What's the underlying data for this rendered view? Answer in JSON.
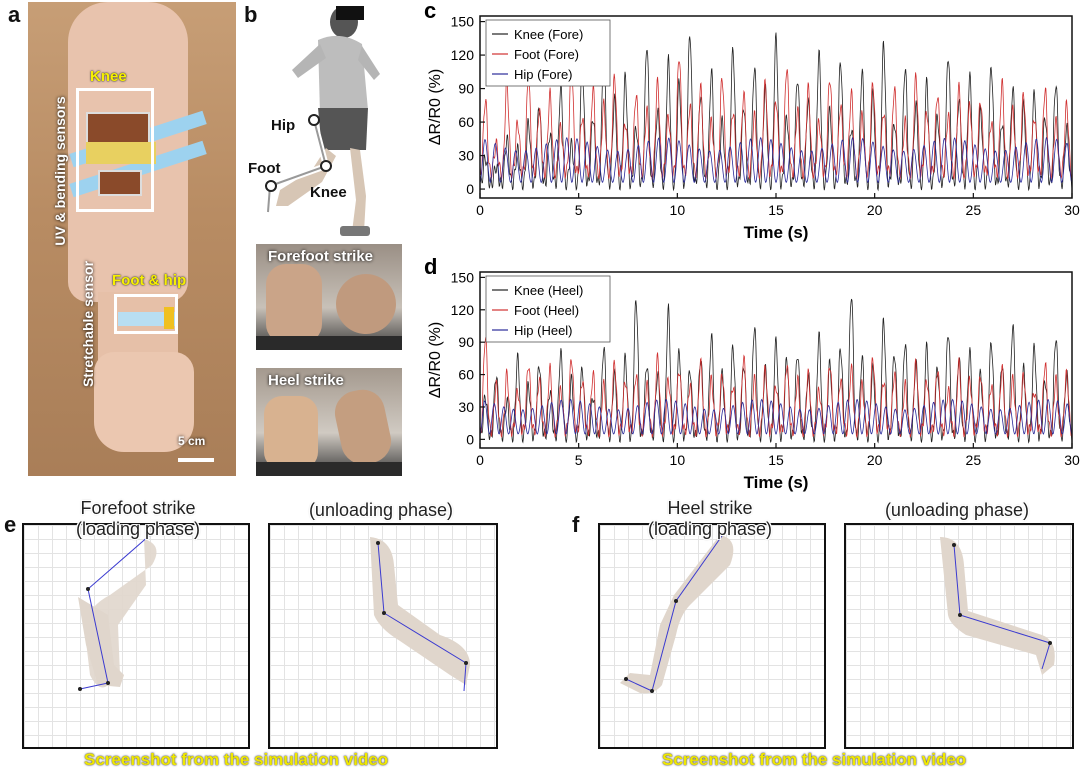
{
  "panels": {
    "a": {
      "letter": "a",
      "labels": {
        "knee": "Knee",
        "uv_bending": "UV & bending sensors",
        "stretchable": "Stretchable sensor",
        "foot_hip": "Foot & hip",
        "scale": "5 cm"
      }
    },
    "b": {
      "letter": "b",
      "labels": {
        "hip": "Hip",
        "foot": "Foot",
        "knee": "Knee",
        "forefoot_strike": "Forefoot strike",
        "heel_strike": "Heel strike"
      }
    },
    "e": {
      "letter": "e",
      "title_left": [
        "Forefoot strike",
        "(loading phase)"
      ],
      "title_right": "(unloading phase)",
      "caption": "Screenshot from the simulation video"
    },
    "f": {
      "letter": "f",
      "title_left": [
        "Heel strike",
        "(loading phase)"
      ],
      "title_right": "(unloading phase)",
      "caption": "Screenshot from the simulation video"
    }
  },
  "chart_data": [
    {
      "panel": "c",
      "type": "line",
      "xlabel": "Time (s)",
      "ylabel": "ΔR/R0 (%)",
      "xlim": [
        0,
        30
      ],
      "ylim": [
        -8,
        155
      ],
      "xticks": [
        0,
        5,
        10,
        15,
        20,
        25,
        30
      ],
      "yticks": [
        0,
        30,
        60,
        90,
        120,
        150
      ],
      "legend_position": "top-left",
      "series": [
        {
          "name": "Knee (Fore)",
          "color": "#222222",
          "style": "peaks",
          "baseline": 5,
          "peaks": [
            28,
            20,
            45,
            35,
            60,
            75,
            50,
            90,
            40,
            110,
            65,
            120,
            80,
            100,
            55,
            130,
            70,
            115,
            95,
            140,
            85,
            105,
            60,
            125,
            75,
            110,
            90,
            135,
            65,
            100,
            80,
            120,
            70,
            115,
            55,
            105,
            85,
            130,
            60,
            110,
            75,
            95,
            65,
            120,
            80,
            100,
            70,
            110,
            60,
            90,
            75,
            85,
            65,
            95,
            55
          ]
        },
        {
          "name": "Foot (Fore)",
          "color": "#d03030",
          "style": "peaks",
          "baseline": 15,
          "peaks": [
            80,
            40,
            95,
            60,
            100,
            70,
            85,
            55,
            110,
            65,
            90,
            75,
            100,
            60,
            85,
            70,
            95,
            65,
            120,
            75,
            90,
            60,
            100,
            70,
            85,
            65,
            95,
            80,
            110,
            70,
            90,
            60,
            100,
            75,
            85,
            65,
            95,
            70,
            90,
            60,
            100,
            70,
            85,
            65,
            90,
            75,
            80,
            60,
            95,
            70,
            85,
            65,
            90,
            60,
            75
          ]
        },
        {
          "name": "Hip (Fore)",
          "color": "#2a2a9a",
          "style": "sine",
          "baseline": 6,
          "amplitude": 40,
          "cycles": 58
        }
      ]
    },
    {
      "panel": "d",
      "type": "line",
      "xlabel": "Time (s)",
      "ylabel": "ΔR/R0 (%)",
      "xlim": [
        0,
        30
      ],
      "ylim": [
        -8,
        155
      ],
      "xticks": [
        0,
        5,
        10,
        15,
        20,
        25,
        30
      ],
      "yticks": [
        0,
        30,
        60,
        90,
        120,
        150
      ],
      "legend_position": "top-left",
      "series": [
        {
          "name": "Knee (Heel)",
          "color": "#222222",
          "style": "peaks",
          "baseline": 3,
          "peaks": [
            40,
            60,
            35,
            75,
            50,
            70,
            45,
            80,
            55,
            65,
            40,
            85,
            60,
            75,
            130,
            70,
            60,
            120,
            80,
            65,
            75,
            95,
            60,
            85,
            70,
            105,
            65,
            90,
            75,
            80,
            60,
            95,
            70,
            85,
            135,
            75,
            65,
            110,
            80,
            90,
            70,
            85,
            65,
            100,
            75,
            80,
            60,
            90,
            70,
            105,
            65,
            85,
            55,
            95,
            60
          ]
        },
        {
          "name": "Foot (Heel)",
          "color": "#d03030",
          "style": "peaks",
          "baseline": 8,
          "peaks": [
            95,
            50,
            60,
            45,
            70,
            55,
            65,
            45,
            75,
            55,
            60,
            50,
            70,
            55,
            60,
            50,
            75,
            55,
            65,
            50,
            70,
            55,
            60,
            50,
            75,
            55,
            65,
            50,
            70,
            55,
            60,
            45,
            70,
            55,
            65,
            50,
            75,
            55,
            60,
            50,
            70,
            55,
            65,
            45,
            70,
            55,
            60,
            50,
            65,
            55,
            60,
            45,
            70,
            55,
            60
          ]
        },
        {
          "name": "Hip (Heel)",
          "color": "#2a2a9a",
          "style": "sine",
          "baseline": 5,
          "amplitude": 32,
          "cycles": 62
        }
      ]
    }
  ]
}
